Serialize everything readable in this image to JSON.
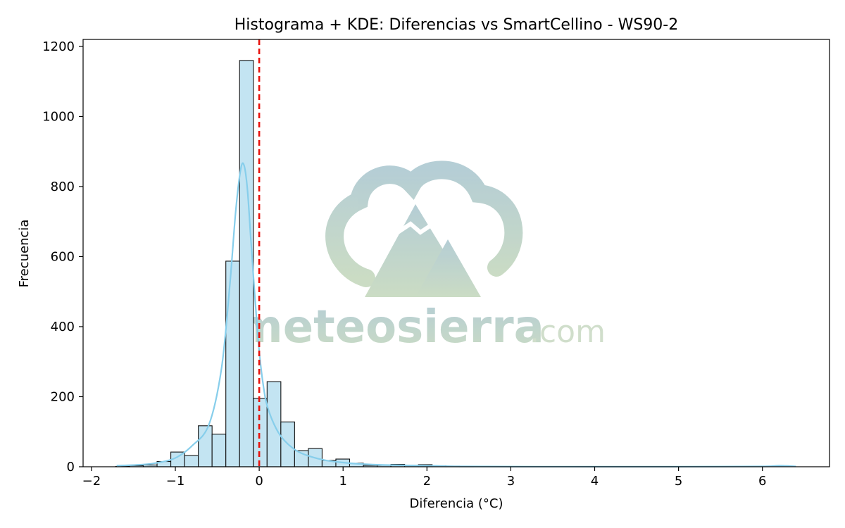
{
  "chart_data": {
    "type": "bar",
    "title": "Histograma + KDE: Diferencias vs SmartCellino - WS90-2",
    "xlabel": "Diferencia (°C)",
    "ylabel": "Frecuencia",
    "xlim": [
      -2.1,
      6.8
    ],
    "ylim": [
      0,
      1220
    ],
    "xticks": [
      -2,
      -1,
      0,
      1,
      2,
      3,
      4,
      5,
      6
    ],
    "xtick_labels": [
      "−2",
      "−1",
      "0",
      "1",
      "2",
      "3",
      "4",
      "5",
      "6"
    ],
    "yticks": [
      0,
      200,
      400,
      600,
      800,
      1000,
      1200
    ],
    "ytick_labels": [
      "0",
      "200",
      "400",
      "600",
      "800",
      "1000",
      "1200"
    ],
    "bin_width": 0.164,
    "bins": [
      {
        "x0": -1.71,
        "value": 1
      },
      {
        "x0": -1.546,
        "value": 3
      },
      {
        "x0": -1.382,
        "value": 5
      },
      {
        "x0": -1.218,
        "value": 15
      },
      {
        "x0": -1.054,
        "value": 42
      },
      {
        "x0": -0.89,
        "value": 32
      },
      {
        "x0": -0.726,
        "value": 117
      },
      {
        "x0": -0.562,
        "value": 93
      },
      {
        "x0": -0.398,
        "value": 587
      },
      {
        "x0": -0.234,
        "value": 1160
      },
      {
        "x0": -0.07,
        "value": 195
      },
      {
        "x0": 0.094,
        "value": 243
      },
      {
        "x0": 0.258,
        "value": 128
      },
      {
        "x0": 0.422,
        "value": 46
      },
      {
        "x0": 0.586,
        "value": 52
      },
      {
        "x0": 0.75,
        "value": 18
      },
      {
        "x0": 0.914,
        "value": 22
      },
      {
        "x0": 1.078,
        "value": 10
      },
      {
        "x0": 1.242,
        "value": 4
      },
      {
        "x0": 1.406,
        "value": 4
      },
      {
        "x0": 1.57,
        "value": 7
      },
      {
        "x0": 1.734,
        "value": 4
      },
      {
        "x0": 1.898,
        "value": 6
      },
      {
        "x0": 2.062,
        "value": 3
      },
      {
        "x0": 2.226,
        "value": 2
      },
      {
        "x0": 2.39,
        "value": 1
      }
    ],
    "kde": {
      "x": [
        -1.7,
        -1.4,
        -1.2,
        -1.0,
        -0.8,
        -0.6,
        -0.45,
        -0.35,
        -0.28,
        -0.22,
        -0.18,
        -0.14,
        -0.1,
        -0.05,
        0.0,
        0.05,
        0.1,
        0.2,
        0.3,
        0.45,
        0.6,
        0.8,
        1.0,
        1.2,
        1.5,
        2.0,
        2.4,
        3.0,
        4.0,
        5.0,
        6.0,
        6.2,
        6.4
      ],
      "y": [
        3,
        6,
        12,
        25,
        60,
        120,
        280,
        520,
        730,
        850,
        860,
        790,
        650,
        480,
        330,
        230,
        170,
        110,
        75,
        45,
        30,
        18,
        12,
        8,
        5,
        3,
        1,
        0.5,
        0.3,
        0.3,
        1,
        3,
        1
      ]
    },
    "reference_line": {
      "x": 0,
      "style": "dashed",
      "color": "#e8120c"
    },
    "colors": {
      "bar_fill": "#c3e4f2",
      "bar_edge": "#111111",
      "kde": "#87ceeb"
    },
    "grid": false,
    "legend": "none"
  },
  "watermark": {
    "brand_main": "meteosierra",
    "brand_suffix": ".com",
    "colors": {
      "teal": "#a8c5ce",
      "green": "#c0d3b8",
      "text_teal": "#a6c4cd",
      "text_green": "#b7cdb0"
    }
  }
}
